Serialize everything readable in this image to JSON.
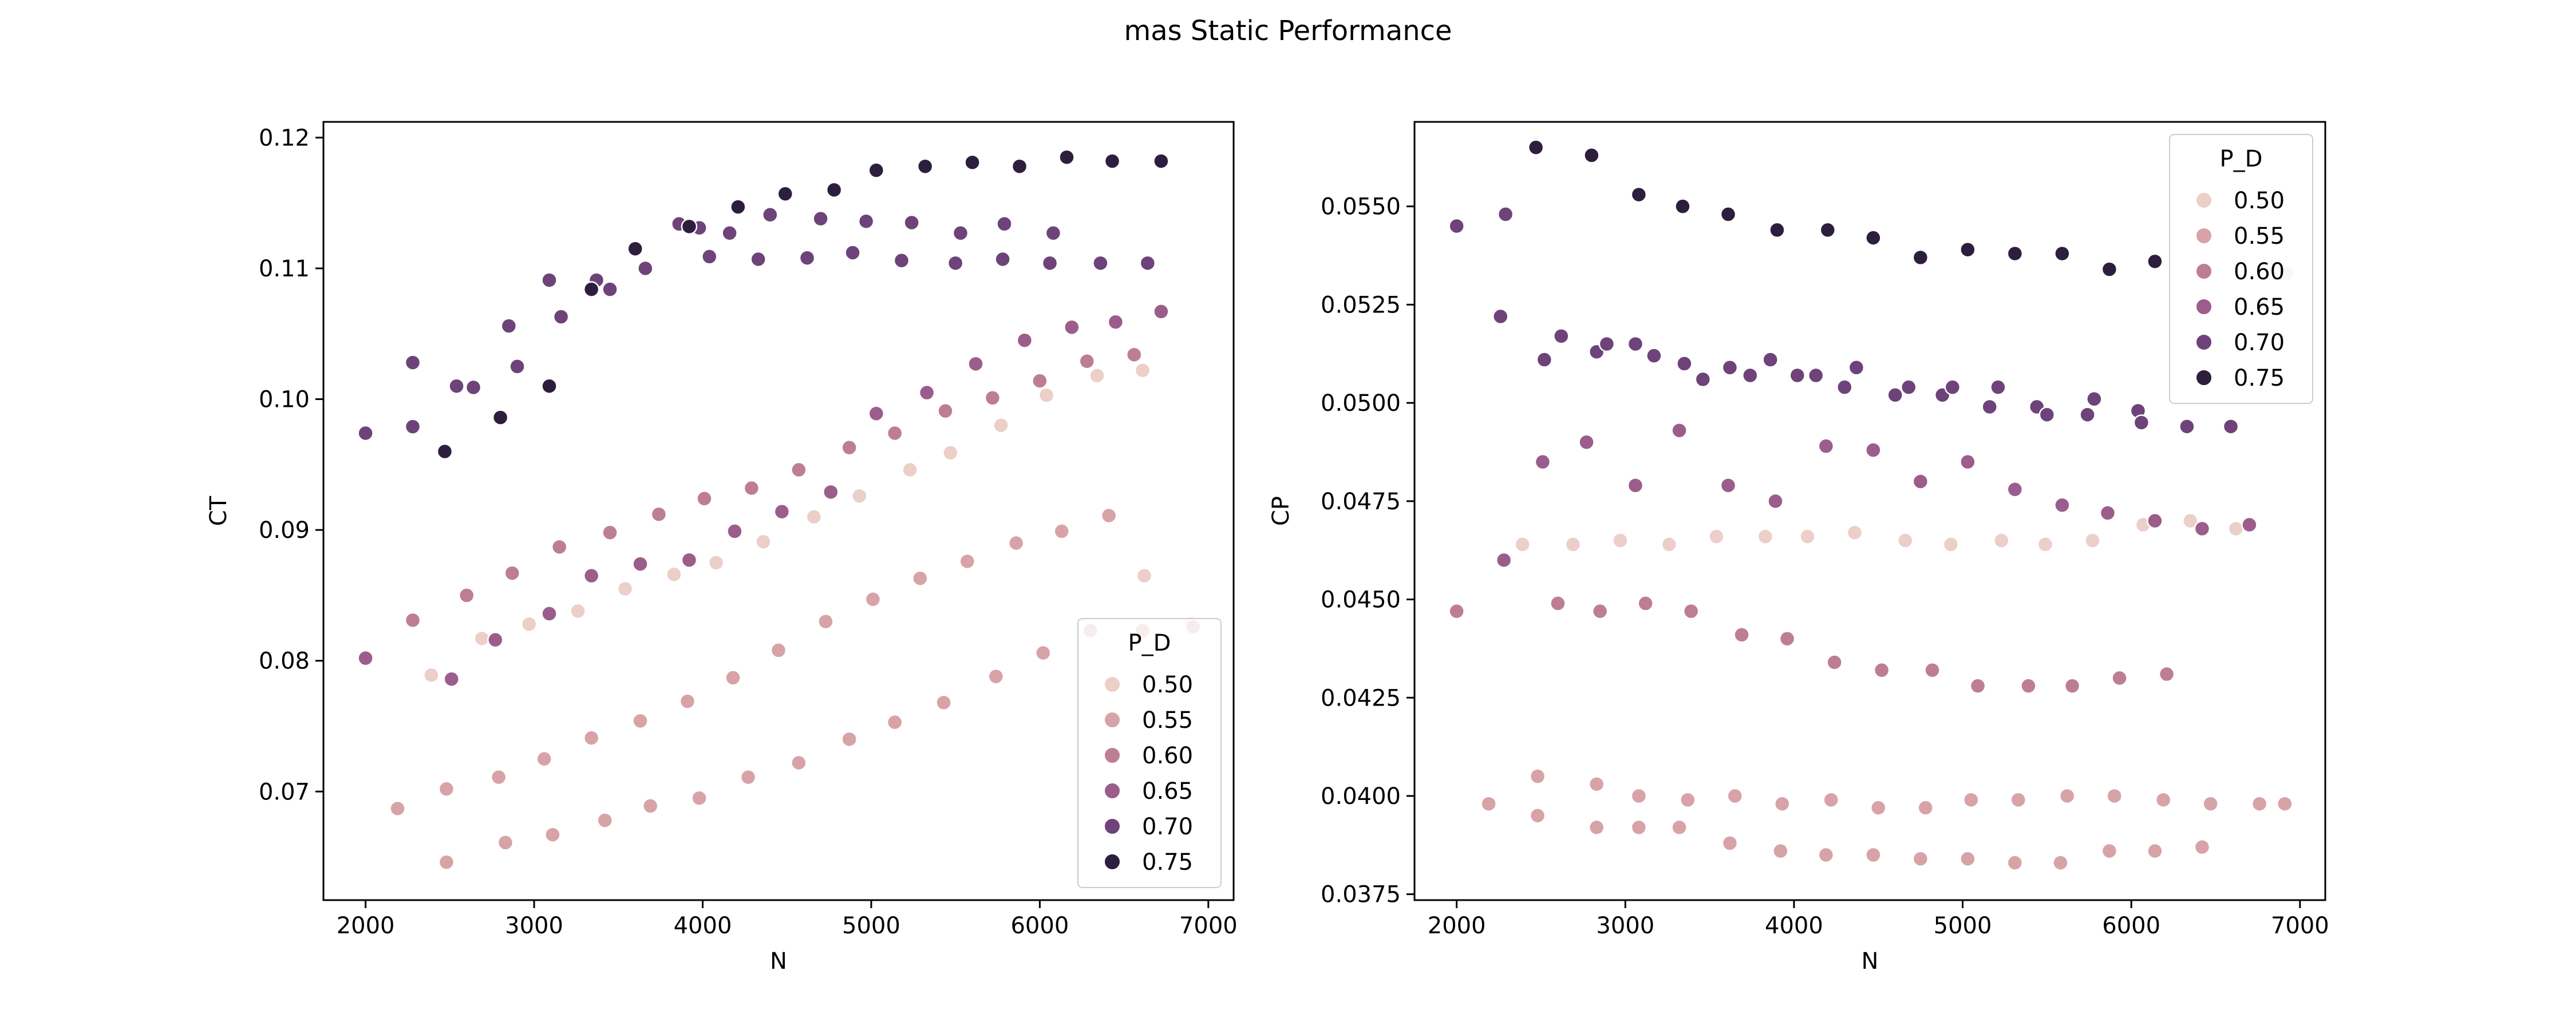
{
  "figure": {
    "title": "mas Static Performance"
  },
  "palette": {
    "0.50": "#eccfc8",
    "0.55": "#d8a3a6",
    "0.60": "#bd7e93",
    "0.65": "#9b5d8c",
    "0.70": "#6e4379",
    "0.75": "#2d1e3e"
  },
  "chart_data": [
    {
      "type": "scatter",
      "title": "",
      "xlabel": "N",
      "ylabel": "CT",
      "xlim": [
        1750,
        7150
      ],
      "ylim": [
        0.0617,
        0.1212
      ],
      "xticks": [
        2000,
        3000,
        4000,
        5000,
        6000,
        7000
      ],
      "yticks": [
        0.07,
        0.08,
        0.09,
        0.1,
        0.11,
        0.12
      ],
      "ytick_decimals": 2,
      "grid": false,
      "legend": {
        "title": "P_D",
        "placement": "lower-right",
        "entries": [
          "0.50",
          "0.55",
          "0.60",
          "0.65",
          "0.70",
          "0.75"
        ]
      },
      "series": [
        {
          "name": "0.50",
          "x": [
            2390,
            2690,
            2970,
            3260,
            3540,
            3830,
            4080,
            4360,
            4660,
            4930,
            5230,
            5470,
            5770,
            6040,
            6340,
            6610,
            6620,
            6900
          ],
          "y": [
            0.0789,
            0.0817,
            0.0828,
            0.0838,
            0.0855,
            0.0866,
            0.0875,
            0.0891,
            0.091,
            0.0926,
            0.0946,
            0.0959,
            0.098,
            0.1003,
            0.1018,
            0.1022,
            0.0865,
            0.0828
          ]
        },
        {
          "name": "0.55",
          "x": [
            2190,
            2480,
            2790,
            3060,
            3340,
            3630,
            3910,
            4180,
            4450,
            4730,
            5010,
            5290,
            5570,
            5860,
            6130,
            6410
          ],
          "y": [
            0.0687,
            0.0702,
            0.0711,
            0.0725,
            0.0741,
            0.0754,
            0.0769,
            0.0787,
            0.0808,
            0.083,
            0.0847,
            0.0863,
            0.0876,
            0.089,
            0.0899,
            0.0911
          ]
        },
        {
          "name": "0.55",
          "x": [
            2480,
            2830,
            3110,
            3420,
            3690,
            3980,
            4270,
            4570,
            4870,
            5140,
            5430,
            5740,
            6020,
            6300,
            6610,
            6910
          ],
          "y": [
            0.0646,
            0.0661,
            0.0667,
            0.0678,
            0.0689,
            0.0695,
            0.0711,
            0.0722,
            0.074,
            0.0753,
            0.0768,
            0.0788,
            0.0806,
            0.0823,
            0.0823,
            0.0826
          ]
        },
        {
          "name": "0.60",
          "x": [
            2280,
            2600,
            2870,
            3150,
            3450,
            3740,
            4010,
            4290,
            4570,
            4870,
            5140,
            5440,
            5720,
            6000,
            6280,
            6560
          ],
          "y": [
            0.0831,
            0.085,
            0.0867,
            0.0887,
            0.0898,
            0.0912,
            0.0924,
            0.0932,
            0.0946,
            0.0963,
            0.0974,
            0.0991,
            0.1001,
            0.1014,
            0.1029,
            0.1034
          ]
        },
        {
          "name": "0.65",
          "x": [
            2000,
            2510,
            2770,
            3090,
            3340,
            3630,
            3920,
            4190,
            4470,
            4760,
            5030,
            5330,
            5620,
            5910,
            6190,
            6450,
            6720
          ],
          "y": [
            0.0802,
            0.0786,
            0.0816,
            0.0836,
            0.0865,
            0.0874,
            0.0877,
            0.0899,
            0.0914,
            0.0929,
            0.0989,
            0.1005,
            0.1027,
            0.1045,
            0.1055,
            0.1059,
            0.1067
          ]
        },
        {
          "name": "0.70",
          "x": [
            2000,
            2280,
            2540,
            2640,
            2900,
            3090,
            3160,
            3370,
            3450,
            3660,
            3860,
            3980,
            4040,
            4160,
            4330,
            4400,
            4620,
            4700,
            4890,
            4970,
            5180,
            5240,
            5500,
            5530,
            5780,
            5790,
            6060,
            6080,
            6360,
            6640
          ],
          "y": [
            0.0974,
            0.0979,
            0.101,
            0.1009,
            0.1025,
            0.1091,
            0.1063,
            0.1091,
            0.1084,
            0.11,
            0.1134,
            0.1131,
            0.1109,
            0.1127,
            0.1107,
            0.1141,
            0.1108,
            0.1138,
            0.1112,
            0.1136,
            0.1106,
            0.1135,
            0.1104,
            0.1127,
            0.1107,
            0.1134,
            0.1104,
            0.1127,
            0.1104,
            0.1104
          ]
        },
        {
          "name": "0.70",
          "x": [
            2280,
            2850
          ],
          "y": [
            0.1028,
            0.1056
          ]
        },
        {
          "name": "0.75",
          "x": [
            2470,
            2800,
            3090,
            3340,
            3600,
            3920,
            4210,
            4490,
            4780,
            5030,
            5320,
            5600,
            5880,
            6160,
            6430,
            6720
          ],
          "y": [
            0.096,
            0.0986,
            0.101,
            0.1084,
            0.1115,
            0.1132,
            0.1147,
            0.1157,
            0.116,
            0.1175,
            0.1178,
            0.1181,
            0.1178,
            0.1185,
            0.1182,
            0.1182
          ]
        }
      ]
    },
    {
      "type": "scatter",
      "title": "",
      "xlabel": "N",
      "ylabel": "CP",
      "xlim": [
        1750,
        7150
      ],
      "ylim": [
        0.03735,
        0.05715
      ],
      "xticks": [
        2000,
        3000,
        4000,
        5000,
        6000,
        7000
      ],
      "yticks": [
        0.0375,
        0.04,
        0.0425,
        0.045,
        0.0475,
        0.05,
        0.0525,
        0.055
      ],
      "ytick_decimals": 4,
      "grid": false,
      "legend": {
        "title": "P_D",
        "placement": "upper-right",
        "entries": [
          "0.50",
          "0.55",
          "0.60",
          "0.65",
          "0.70",
          "0.75"
        ]
      },
      "series": [
        {
          "name": "0.50",
          "x": [
            2390,
            2690,
            2970,
            3260,
            3540,
            3830,
            4080,
            4360,
            4660,
            4930,
            5230,
            5490,
            5770,
            6070,
            6350,
            6620,
            6920
          ],
          "y": [
            0.0464,
            0.0464,
            0.0465,
            0.0464,
            0.0466,
            0.0466,
            0.0466,
            0.0467,
            0.0465,
            0.0464,
            0.0465,
            0.0464,
            0.0465,
            0.0469,
            0.047,
            0.0468,
            0.0533
          ]
        },
        {
          "name": "0.55",
          "x": [
            2190,
            2480,
            2830,
            3080,
            3370,
            3650,
            3930,
            4220,
            4500,
            4780,
            5050,
            5330,
            5620,
            5900,
            6190,
            6470,
            6760
          ],
          "y": [
            0.0398,
            0.0405,
            0.0403,
            0.04,
            0.0399,
            0.04,
            0.0398,
            0.0399,
            0.0397,
            0.0397,
            0.0399,
            0.0399,
            0.04,
            0.04,
            0.0399,
            0.0398,
            0.0398
          ]
        },
        {
          "name": "0.55",
          "x": [
            2480,
            2830,
            3080,
            3320,
            3620,
            3920,
            4190,
            4470,
            4750,
            5030,
            5310,
            5580,
            5870,
            6140,
            6420,
            6910
          ],
          "y": [
            0.0395,
            0.0392,
            0.0392,
            0.0392,
            0.0388,
            0.0386,
            0.0385,
            0.0385,
            0.0384,
            0.0384,
            0.0383,
            0.0383,
            0.0386,
            0.0386,
            0.0387,
            0.0398
          ]
        },
        {
          "name": "0.60",
          "x": [
            2000,
            2600,
            2850,
            3120,
            3390,
            3690,
            3960,
            4240,
            4520,
            4820,
            5090,
            5390,
            5650,
            5930,
            6210
          ],
          "y": [
            0.0447,
            0.0449,
            0.0447,
            0.0449,
            0.0447,
            0.0441,
            0.044,
            0.0434,
            0.0432,
            0.0432,
            0.0428,
            0.0428,
            0.0428,
            0.043,
            0.0431
          ]
        },
        {
          "name": "0.65",
          "x": [
            2280,
            2510,
            2770,
            3060,
            3320,
            3610,
            3890,
            4190,
            4470,
            4750,
            5030,
            5310,
            5590,
            5860,
            6140,
            6420,
            6700
          ],
          "y": [
            0.046,
            0.0485,
            0.049,
            0.0479,
            0.0493,
            0.0479,
            0.0475,
            0.0489,
            0.0488,
            0.048,
            0.0485,
            0.0478,
            0.0474,
            0.0472,
            0.047,
            0.0468,
            0.0469
          ]
        },
        {
          "name": "0.70",
          "x": [
            2260,
            2520,
            2620,
            2830,
            2890,
            3060,
            3170,
            3350,
            3460,
            3620,
            3740,
            3860,
            4020,
            4130,
            4300,
            4370,
            4600,
            4680,
            4880,
            4940,
            5160,
            5210,
            5440,
            5500,
            5740,
            5780,
            6040,
            6060,
            6330,
            6590
          ],
          "y": [
            0.0522,
            0.0511,
            0.0517,
            0.0513,
            0.0515,
            0.0515,
            0.0512,
            0.051,
            0.0506,
            0.0509,
            0.0507,
            0.0511,
            0.0507,
            0.0507,
            0.0504,
            0.0509,
            0.0502,
            0.0504,
            0.0502,
            0.0504,
            0.0499,
            0.0504,
            0.0499,
            0.0497,
            0.0497,
            0.0501,
            0.0498,
            0.0495,
            0.0494,
            0.0494
          ]
        },
        {
          "name": "0.70",
          "x": [
            2000,
            2290
          ],
          "y": [
            0.0545,
            0.0548
          ]
        },
        {
          "name": "0.75",
          "x": [
            2470,
            2800,
            3080,
            3340,
            3610,
            3900,
            4200,
            4470,
            4750,
            5030,
            5310,
            5590,
            5870,
            6140
          ],
          "y": [
            0.0565,
            0.0563,
            0.0553,
            0.055,
            0.0548,
            0.0544,
            0.0544,
            0.0542,
            0.0537,
            0.0539,
            0.0538,
            0.0538,
            0.0534,
            0.0536
          ]
        }
      ]
    }
  ]
}
